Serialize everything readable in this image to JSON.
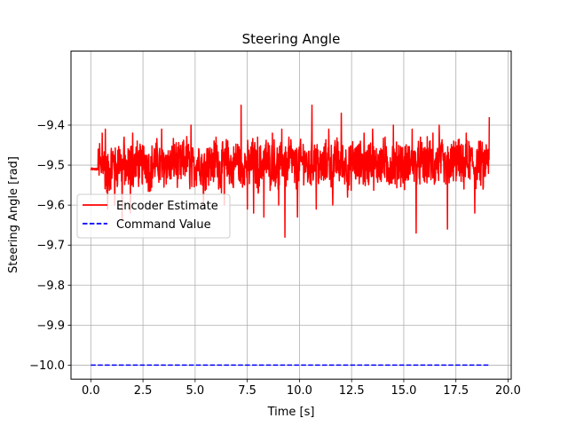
{
  "chart_data": {
    "type": "line",
    "title": "Steering Angle",
    "xlabel": "Time [s]",
    "ylabel": "Steering Angle [rad]",
    "xlim": [
      -0.95,
      20.15
    ],
    "ylim": [
      -10.035,
      -9.215
    ],
    "x_ticks": [
      0.0,
      2.5,
      5.0,
      7.5,
      10.0,
      12.5,
      15.0,
      17.5,
      20.0
    ],
    "x_tick_labels": [
      "0.0",
      "2.5",
      "5.0",
      "7.5",
      "10.0",
      "12.5",
      "15.0",
      "17.5",
      "20.0"
    ],
    "y_ticks": [
      -10.0,
      -9.9,
      -9.8,
      -9.7,
      -9.6,
      -9.5,
      -9.4
    ],
    "y_tick_labels": [
      "−10.0",
      "−9.9",
      "−9.8",
      "−9.7",
      "−9.6",
      "−9.5",
      "−9.4"
    ],
    "grid": true,
    "legend_position": "center-left",
    "series": [
      {
        "name": "Encoder Estimate",
        "color": "#ff0000",
        "style": "solid",
        "x": [
          0.0,
          0.15,
          0.3,
          0.4,
          0.5,
          0.6,
          0.7,
          0.8,
          0.9,
          1.0,
          1.1,
          1.2,
          1.3,
          1.4,
          1.5,
          1.6,
          1.7,
          1.8,
          1.9,
          2.0,
          2.2,
          2.4,
          2.6,
          2.8,
          3.0,
          3.2,
          3.4,
          3.6,
          3.8,
          4.0,
          4.2,
          4.4,
          4.6,
          4.8,
          5.0,
          5.2,
          5.4,
          5.6,
          5.8,
          6.0,
          6.2,
          6.4,
          6.6,
          6.8,
          7.0,
          7.2,
          7.4,
          7.6,
          7.8,
          8.0,
          8.2,
          8.4,
          8.6,
          8.8,
          9.0,
          9.2,
          9.4,
          9.6,
          9.8,
          10.0,
          10.2,
          10.4,
          10.6,
          10.8,
          11.0,
          11.2,
          11.4,
          11.6,
          11.8,
          12.0,
          12.2,
          12.4,
          12.6,
          12.8,
          13.0,
          13.2,
          13.4,
          13.6,
          13.8,
          14.0,
          14.2,
          14.4,
          14.6,
          14.8,
          15.0,
          15.2,
          15.4,
          15.6,
          15.8,
          16.0,
          16.2,
          16.4,
          16.6,
          16.8,
          17.0,
          17.2,
          17.4,
          17.6,
          17.8,
          18.0,
          18.2,
          18.4,
          18.6,
          18.8,
          19.0,
          19.1
        ],
        "y": [
          -9.51,
          -9.51,
          -9.48,
          -9.44,
          -9.57,
          -9.42,
          -9.58,
          -9.6,
          -9.55,
          -9.5,
          -9.46,
          -9.57,
          -9.48,
          -9.43,
          -9.56,
          -9.47,
          -9.6,
          -9.52,
          -9.44,
          -9.55,
          -9.46,
          -9.53,
          -9.43,
          -9.55,
          -9.49,
          -9.45,
          -9.55,
          -9.47,
          -9.52,
          -9.43,
          -9.53,
          -9.48,
          -9.42,
          -9.56,
          -9.5,
          -9.44,
          -9.55,
          -9.46,
          -9.52,
          -9.42,
          -9.55,
          -9.48,
          -9.45,
          -9.56,
          -9.41,
          -9.54,
          -9.47,
          -9.51,
          -9.44,
          -9.56,
          -9.48,
          -9.43,
          -9.52,
          -9.46,
          -9.55,
          -9.45,
          -9.52,
          -9.42,
          -9.56,
          -9.49,
          -9.44,
          -9.54,
          -9.47,
          -9.42,
          -9.55,
          -9.5,
          -9.45,
          -9.54,
          -9.43,
          -9.52,
          -9.47,
          -9.56,
          -9.44,
          -9.51,
          -9.46,
          -9.55,
          -9.42,
          -9.53,
          -9.48,
          -9.45,
          -9.56,
          -9.47,
          -9.52,
          -9.43,
          -9.55,
          -9.49,
          -9.44,
          -9.54,
          -9.46,
          -9.53,
          -9.42,
          -9.55,
          -9.48,
          -9.45,
          -9.56,
          -9.47,
          -9.51,
          -9.43,
          -9.55,
          -9.49,
          -9.44,
          -9.54,
          -9.46,
          -9.52,
          -9.45,
          -9.38
        ]
      },
      {
        "name": "Command Value",
        "color": "#0000ff",
        "style": "dashed",
        "x": [
          0.0,
          19.1
        ],
        "y": [
          -10.0,
          -10.0
        ]
      }
    ],
    "spikes": [
      {
        "x": 0.35,
        "y": -9.46
      },
      {
        "x": 0.55,
        "y": -9.42
      },
      {
        "x": 0.7,
        "y": -9.41
      },
      {
        "x": 0.8,
        "y": -9.61
      },
      {
        "x": 1.15,
        "y": -9.6
      },
      {
        "x": 1.5,
        "y": -9.64
      },
      {
        "x": 1.6,
        "y": -9.43
      },
      {
        "x": 1.9,
        "y": -9.62
      },
      {
        "x": 2.0,
        "y": -9.42
      },
      {
        "x": 3.4,
        "y": -9.41
      },
      {
        "x": 4.8,
        "y": -9.4
      },
      {
        "x": 5.4,
        "y": -9.61
      },
      {
        "x": 6.0,
        "y": -9.43
      },
      {
        "x": 6.4,
        "y": -9.6
      },
      {
        "x": 7.2,
        "y": -9.35
      },
      {
        "x": 7.5,
        "y": -9.61
      },
      {
        "x": 7.8,
        "y": -9.62
      },
      {
        "x": 8.0,
        "y": -9.43
      },
      {
        "x": 8.3,
        "y": -9.63
      },
      {
        "x": 8.7,
        "y": -9.42
      },
      {
        "x": 9.0,
        "y": -9.6
      },
      {
        "x": 9.15,
        "y": -9.41
      },
      {
        "x": 9.3,
        "y": -9.68
      },
      {
        "x": 9.5,
        "y": -9.43
      },
      {
        "x": 9.9,
        "y": -9.63
      },
      {
        "x": 10.6,
        "y": -9.35
      },
      {
        "x": 10.8,
        "y": -9.61
      },
      {
        "x": 11.4,
        "y": -9.41
      },
      {
        "x": 11.6,
        "y": -9.6
      },
      {
        "x": 12.0,
        "y": -9.37
      },
      {
        "x": 12.3,
        "y": -9.58
      },
      {
        "x": 13.1,
        "y": -9.42
      },
      {
        "x": 13.5,
        "y": -9.41
      },
      {
        "x": 14.1,
        "y": -9.43
      },
      {
        "x": 14.5,
        "y": -9.4
      },
      {
        "x": 15.4,
        "y": -9.41
      },
      {
        "x": 15.6,
        "y": -9.67
      },
      {
        "x": 15.8,
        "y": -9.43
      },
      {
        "x": 16.4,
        "y": -9.42
      },
      {
        "x": 16.7,
        "y": -9.4
      },
      {
        "x": 17.1,
        "y": -9.66
      },
      {
        "x": 17.4,
        "y": -9.44
      },
      {
        "x": 18.0,
        "y": -9.42
      },
      {
        "x": 18.4,
        "y": -9.62
      },
      {
        "x": 18.8,
        "y": -9.56
      },
      {
        "x": 19.1,
        "y": -9.37
      }
    ]
  }
}
